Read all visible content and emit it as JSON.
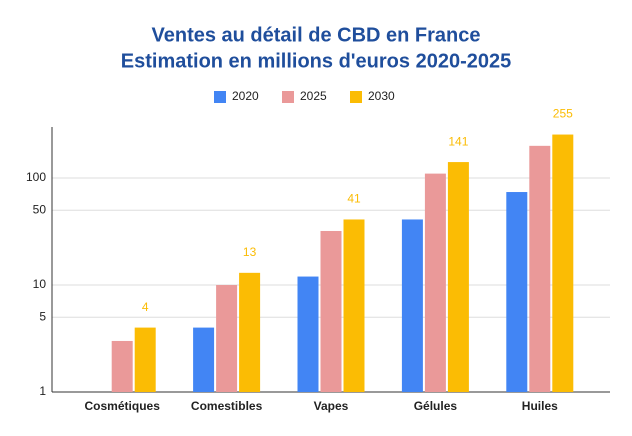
{
  "chart_data": {
    "type": "bar",
    "title": "Ventes au détail de CBD en France",
    "subtitle": "Estimation en millions d'euros 2020-2025",
    "categories": [
      "Cosmétiques",
      "Comestibles",
      "Vapes",
      "Gélules",
      "Huiles"
    ],
    "series": [
      {
        "name": "2020",
        "color": "#4285f4",
        "values": [
          null,
          4,
          12,
          41,
          74
        ]
      },
      {
        "name": "2025",
        "color": "#ea9999",
        "values": [
          3,
          10,
          32,
          110,
          200
        ]
      },
      {
        "name": "2030",
        "color": "#fbbc04",
        "values": [
          4,
          13,
          41,
          141,
          255
        ],
        "show_labels": true
      }
    ],
    "ylim": [
      1,
      300
    ],
    "yticks": [
      1,
      5,
      10,
      50,
      100
    ],
    "log_scale": true,
    "grid": true,
    "legend": "top"
  }
}
